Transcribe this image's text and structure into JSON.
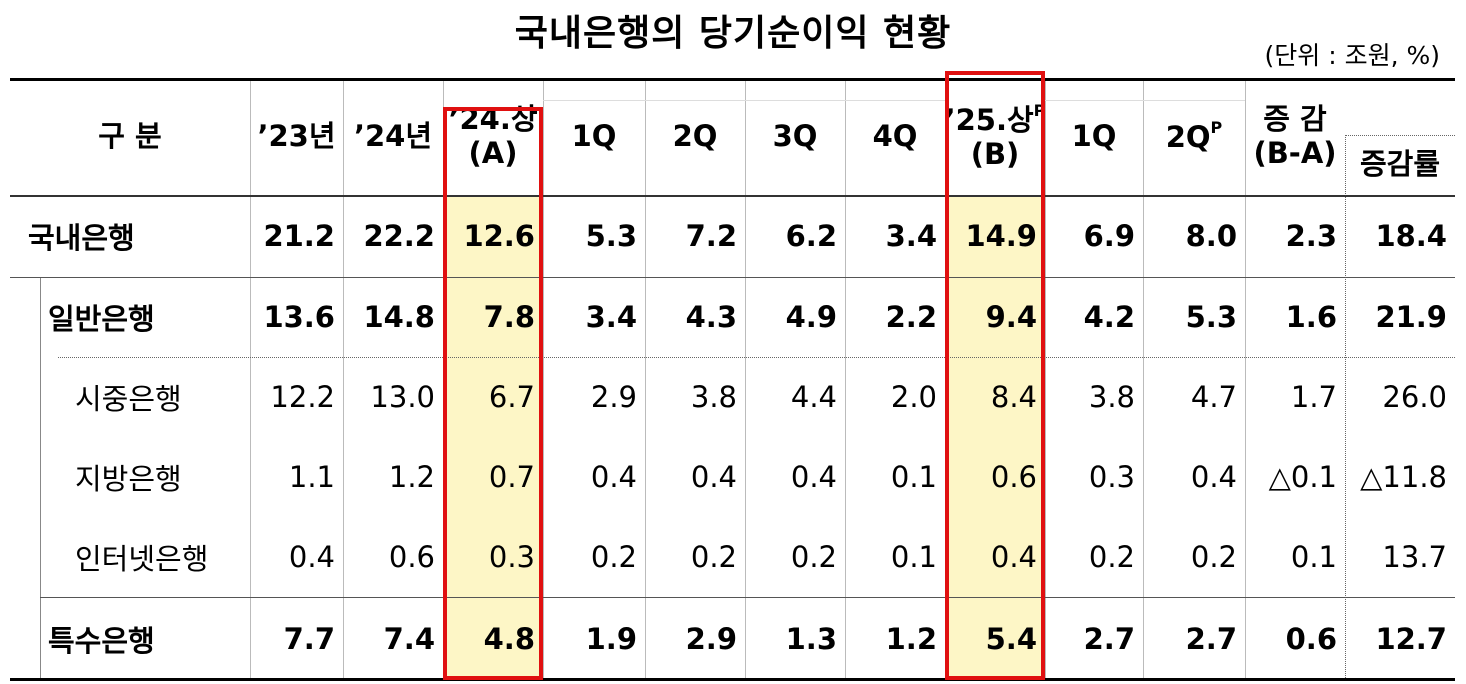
{
  "title": "국내은행의 당기순이익 현황",
  "unit": "(단위 : 조원, %)",
  "table": {
    "header": [
      {
        "label": "구 분"
      },
      {
        "label": "’23년"
      },
      {
        "label": "’24년"
      },
      {
        "label": "’24.상",
        "sub": "(A)"
      },
      {
        "label": "1Q"
      },
      {
        "label": "2Q"
      },
      {
        "label": "3Q"
      },
      {
        "label": "4Q"
      },
      {
        "label": "’25.상",
        "sup": "P",
        "sub": "(B)"
      },
      {
        "label": "1Q"
      },
      {
        "label": "2Q",
        "sup": "P"
      },
      {
        "label": "증 감",
        "sub": "(B-A)"
      },
      {
        "label": "증감률"
      }
    ],
    "rows": [
      [
        "국내은행",
        "21.2",
        "22.2",
        "12.6",
        "5.3",
        "7.2",
        "6.2",
        "3.4",
        "14.9",
        "6.9",
        "8.0",
        "2.3",
        "18.4"
      ],
      [
        "일반은행",
        "13.6",
        "14.8",
        "7.8",
        "3.4",
        "4.3",
        "4.9",
        "2.2",
        "9.4",
        "4.2",
        "5.3",
        "1.6",
        "21.9"
      ],
      [
        "시중은행",
        "12.2",
        "13.0",
        "6.7",
        "2.9",
        "3.8",
        "4.4",
        "2.0",
        "8.4",
        "3.8",
        "4.7",
        "1.7",
        "26.0"
      ],
      [
        "지방은행",
        "1.1",
        "1.2",
        "0.7",
        "0.4",
        "0.4",
        "0.4",
        "0.1",
        "0.6",
        "0.3",
        "0.4",
        "△0.1",
        "△11.8"
      ],
      [
        "인터넷은행",
        "0.4",
        "0.6",
        "0.3",
        "0.2",
        "0.2",
        "0.2",
        "0.1",
        "0.4",
        "0.2",
        "0.2",
        "0.1",
        "13.7"
      ],
      [
        "특수은행",
        "7.7",
        "7.4",
        "4.8",
        "1.9",
        "2.9",
        "1.3",
        "1.2",
        "5.4",
        "2.7",
        "2.7",
        "0.6",
        "12.7"
      ]
    ]
  }
}
